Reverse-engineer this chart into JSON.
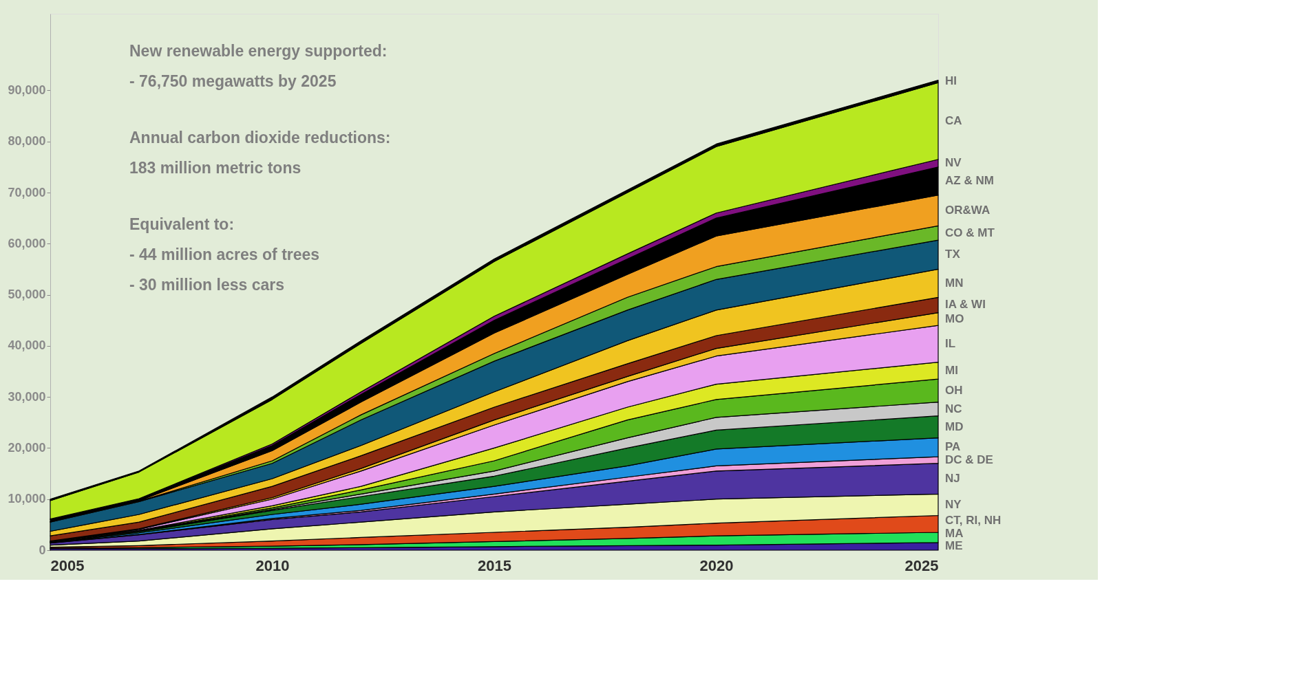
{
  "chart_data": {
    "type": "area",
    "stacked": true,
    "x": [
      2005,
      2007,
      2010,
      2012,
      2015,
      2018,
      2020,
      2025
    ],
    "xlim": [
      2005,
      2025
    ],
    "xticks": [
      2005,
      2010,
      2015,
      2020,
      2025
    ],
    "ylim": [
      0,
      105000
    ],
    "yticks": [
      0,
      {
        "value": 10000,
        "label": "10,000"
      },
      {
        "value": 20000,
        "label": "20,000"
      },
      {
        "value": 30000,
        "label": "30,000"
      },
      {
        "value": 40000,
        "label": "40,000"
      },
      {
        "value": 50000,
        "label": "50,000"
      },
      {
        "value": 60000,
        "label": "60,000"
      },
      {
        "value": 70000,
        "label": "70,000"
      },
      {
        "value": 80000,
        "label": "80,000"
      },
      {
        "value": 90000,
        "label": "90,000"
      }
    ],
    "grid": false,
    "annotations": [
      "New renewable energy supported:\n- 76,750 megawatts by 2025",
      "Annual carbon dioxide reductions:\n183 million metric tons",
      "Equivalent to:\n- 44 million acres of trees\n- 30 million less cars"
    ],
    "series": [
      {
        "name": "ME",
        "color": "#3a1fa0",
        "values": [
          300,
          300,
          400,
          500,
          700,
          900,
          1000,
          1500
        ]
      },
      {
        "name": "MA",
        "color": "#22e05a",
        "values": [
          100,
          200,
          400,
          600,
          1000,
          1400,
          1800,
          2000
        ]
      },
      {
        "name": "CT, RI, NH",
        "color": "#e04a1a",
        "values": [
          200,
          400,
          1000,
          1400,
          1800,
          2200,
          2500,
          3300
        ]
      },
      {
        "name": "NY",
        "color": "#eef5b0",
        "values": [
          400,
          900,
          2400,
          3000,
          4000,
          4500,
          4700,
          4200
        ]
      },
      {
        "name": "NJ",
        "color": "#4e34a0",
        "values": [
          400,
          1200,
          1800,
          2000,
          3000,
          4500,
          5500,
          6000
        ]
      },
      {
        "name": "DC & DE",
        "color": "#f0a0d8",
        "values": [
          50,
          100,
          200,
          300,
          500,
          800,
          1000,
          1300
        ]
      },
      {
        "name": "PA",
        "color": "#2090e0",
        "values": [
          50,
          300,
          800,
          1200,
          1500,
          2200,
          3300,
          3700
        ]
      },
      {
        "name": "MD",
        "color": "#147a28",
        "values": [
          50,
          200,
          800,
          1500,
          2000,
          3500,
          3700,
          4300
        ]
      },
      {
        "name": "NC",
        "color": "#c8c8c8",
        "values": [
          50,
          100,
          200,
          500,
          1000,
          2000,
          2500,
          2700
        ]
      },
      {
        "name": "OH",
        "color": "#5ab81e",
        "values": [
          50,
          100,
          300,
          800,
          2000,
          3500,
          3500,
          4500
        ]
      },
      {
        "name": "MI",
        "color": "#dde823",
        "values": [
          50,
          100,
          400,
          700,
          2500,
          2500,
          3000,
          3300
        ]
      },
      {
        "name": "IL",
        "color": "#e8a0f0",
        "values": [
          50,
          200,
          1300,
          3000,
          4500,
          5000,
          5500,
          7200
        ]
      },
      {
        "name": "MO",
        "color": "#f0c020",
        "values": [
          50,
          100,
          300,
          500,
          1000,
          1000,
          1500,
          2500
        ]
      },
      {
        "name": "IA & WI",
        "color": "#8a2a10",
        "values": [
          1000,
          1300,
          2200,
          2500,
          2500,
          2500,
          2500,
          3000
        ]
      },
      {
        "name": "MN",
        "color": "#f0c420",
        "values": [
          900,
          1500,
          1500,
          2000,
          3000,
          4500,
          5000,
          5500
        ]
      },
      {
        "name": "TX",
        "color": "#105878",
        "values": [
          1800,
          2500,
          3000,
          5000,
          6000,
          6000,
          6000,
          5700
        ]
      },
      {
        "name": "CO & MT",
        "color": "#6ab828",
        "values": [
          50,
          100,
          500,
          1000,
          1500,
          2500,
          2500,
          2800
        ]
      },
      {
        "name": "OR&WA",
        "color": "#f0a020",
        "values": [
          50,
          100,
          2000,
          2500,
          4000,
          4500,
          6000,
          6000
        ]
      },
      {
        "name": "AZ & NM",
        "color": "#000000",
        "values": [
          400,
          300,
          1000,
          1500,
          2500,
          3000,
          3500,
          5500
        ]
      },
      {
        "name": "NV",
        "color": "#801080",
        "values": [
          100,
          100,
          300,
          500,
          800,
          1000,
          1000,
          1500
        ]
      },
      {
        "name": "CA",
        "color": "#b8e820",
        "values": [
          3600,
          5200,
          8700,
          9500,
          10700,
          12000,
          13000,
          15000
        ]
      },
      {
        "name": "HI",
        "color": "#000000",
        "values": [
          300,
          200,
          500,
          500,
          500,
          500,
          500,
          500
        ]
      }
    ]
  }
}
